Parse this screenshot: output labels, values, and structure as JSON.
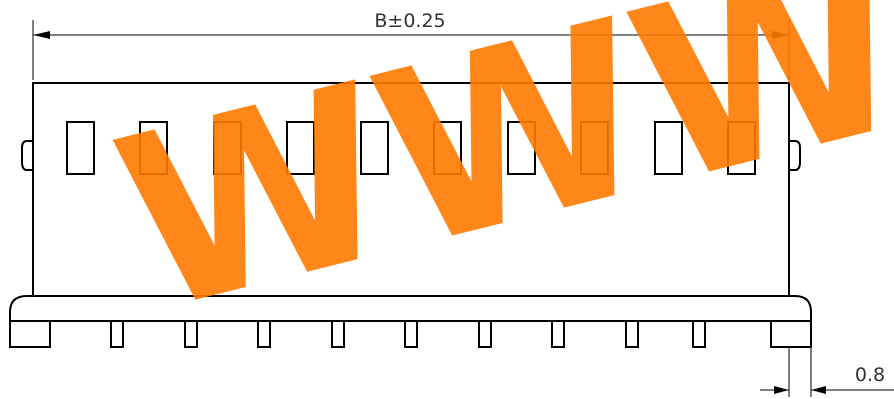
{
  "dimensions": {
    "overall_width_label": "B±0.25",
    "pin_pitch_label": "0.8"
  },
  "watermark": {
    "text": "WWW.ASK",
    "color": "#ff7a00"
  },
  "colors": {
    "line": "#000000",
    "background": "#ffffff"
  },
  "window_count": 10,
  "pin_count": 10
}
